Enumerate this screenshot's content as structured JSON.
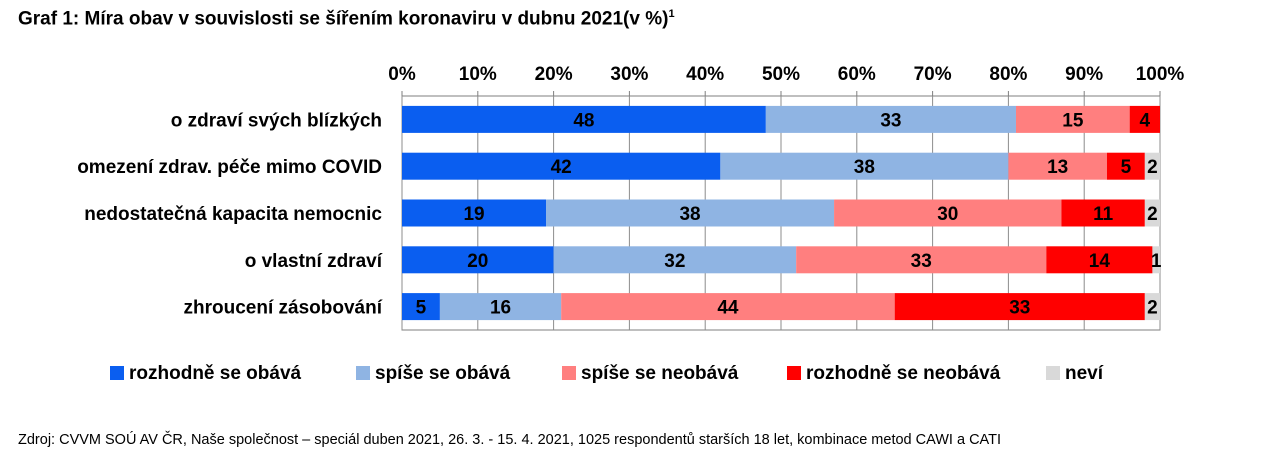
{
  "title": "Graf 1: Míra obav v souvislosti se šířením koronaviru v dubnu 2021(v %)",
  "title_sup": "1",
  "source": "Zdroj: CVVM SOÚ AV ČR, Naše společnost – speciál duben 2021, 26. 3. - 15. 4. 2021, 1025 respondentů starších 18 let, kombinace metod CAWI a CATI",
  "chart_data": {
    "type": "bar",
    "orientation": "horizontal",
    "stacked": "percent",
    "categories": [
      "o zdraví svých blízkých",
      "omezení zdrav. péče mimo COVID",
      "nedostatečná kapacita nemocnic",
      "o vlastní zdraví",
      "zhroucení zásobování"
    ],
    "series": [
      {
        "name": "rozhodně se obává",
        "color": "#0a5ef0",
        "values": [
          48,
          42,
          19,
          20,
          5
        ]
      },
      {
        "name": "spíše se obává",
        "color": "#8fb4e3",
        "values": [
          33,
          38,
          38,
          32,
          16
        ]
      },
      {
        "name": "spíše se neobává",
        "color": "#ff7f7f",
        "values": [
          15,
          13,
          30,
          33,
          44
        ]
      },
      {
        "name": "rozhodně se neobává",
        "color": "#ff0000",
        "values": [
          4,
          5,
          11,
          14,
          33
        ]
      },
      {
        "name": "neví",
        "color": "#d9d9d9",
        "values": [
          0,
          2,
          2,
          1,
          2
        ]
      }
    ],
    "value_labels": [
      [
        "48",
        "33",
        "15",
        "4",
        ""
      ],
      [
        "42",
        "38",
        "13",
        "5",
        "2"
      ],
      [
        "19",
        "38",
        "30",
        "11",
        "2"
      ],
      [
        "20",
        "32",
        "33",
        "14",
        "1"
      ],
      [
        "5",
        "16",
        "44",
        "33",
        "2"
      ]
    ],
    "x_ticks": [
      "0%",
      "10%",
      "20%",
      "30%",
      "40%",
      "50%",
      "60%",
      "70%",
      "80%",
      "90%",
      "100%"
    ],
    "xlim": [
      0,
      100
    ],
    "axis_position": "top",
    "grid": "vertical",
    "legend": "bottom"
  }
}
